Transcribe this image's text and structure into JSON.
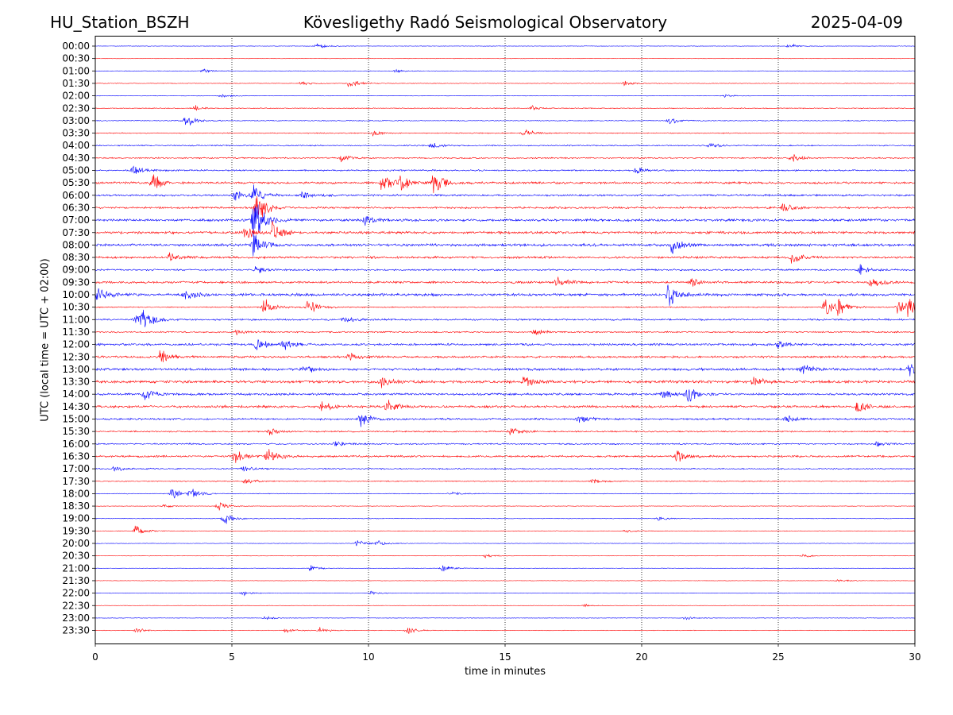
{
  "header": {
    "station": "HU_Station_BSZH",
    "observatory": "Kövesligethy Radó Seismological Observatory",
    "date": "2025-04-09"
  },
  "chart_data": {
    "type": "line",
    "title": "Kövesligethy Radó Seismological Observatory",
    "xlabel": "time in minutes",
    "ylabel": "UTC (local time = UTC + 02:00)",
    "xlim": [
      0,
      30
    ],
    "x_ticks": [
      "0",
      "5",
      "10",
      "15",
      "20",
      "25",
      "30"
    ],
    "grid": "vertical dotted lines at 5-minute intervals",
    "series_colors": [
      "#0000ff",
      "#ff0000"
    ],
    "rows": [
      {
        "label": "00:00",
        "noise": 0.1,
        "events": [
          [
            8.1,
            0.5
          ],
          [
            25.4,
            0.4
          ]
        ]
      },
      {
        "label": "00:30",
        "noise": 0.08,
        "events": []
      },
      {
        "label": "01:00",
        "noise": 0.1,
        "events": [
          [
            3.9,
            0.4
          ],
          [
            11.0,
            0.3
          ]
        ]
      },
      {
        "label": "01:30",
        "noise": 0.12,
        "events": [
          [
            7.5,
            0.4
          ],
          [
            9.3,
            0.8
          ],
          [
            19.4,
            0.5
          ]
        ]
      },
      {
        "label": "02:00",
        "noise": 0.1,
        "events": [
          [
            4.6,
            0.3
          ],
          [
            23.0,
            0.3
          ]
        ]
      },
      {
        "label": "02:30",
        "noise": 0.18,
        "events": [
          [
            3.6,
            0.5
          ],
          [
            16.0,
            0.4
          ]
        ]
      },
      {
        "label": "03:00",
        "noise": 0.18,
        "events": [
          [
            3.3,
            1.3
          ],
          [
            21.0,
            0.6
          ]
        ]
      },
      {
        "label": "03:30",
        "noise": 0.2,
        "events": [
          [
            15.7,
            0.8
          ],
          [
            10.2,
            0.4
          ]
        ]
      },
      {
        "label": "04:00",
        "noise": 0.25,
        "events": [
          [
            12.3,
            0.6
          ],
          [
            22.5,
            0.5
          ]
        ]
      },
      {
        "label": "04:30",
        "noise": 0.28,
        "events": [
          [
            9.0,
            0.6
          ],
          [
            25.5,
            0.7
          ]
        ]
      },
      {
        "label": "05:00",
        "noise": 0.32,
        "events": [
          [
            1.4,
            0.8
          ],
          [
            19.8,
            0.6
          ]
        ]
      },
      {
        "label": "05:30",
        "noise": 0.45,
        "events": [
          [
            2.1,
            1.6
          ],
          [
            10.5,
            1.5
          ],
          [
            12.4,
            1.8
          ],
          [
            11.2,
            1.2
          ]
        ]
      },
      {
        "label": "06:00",
        "noise": 0.4,
        "events": [
          [
            5.1,
            1.0
          ],
          [
            5.8,
            1.5
          ],
          [
            7.6,
            0.8
          ]
        ]
      },
      {
        "label": "06:30",
        "noise": 0.4,
        "events": [
          [
            5.9,
            3.0
          ],
          [
            25.2,
            0.8
          ]
        ]
      },
      {
        "label": "07:00",
        "noise": 0.5,
        "events": [
          [
            5.8,
            4.5
          ],
          [
            9.9,
            0.8
          ]
        ]
      },
      {
        "label": "07:30",
        "noise": 0.5,
        "events": [
          [
            6.5,
            1.6
          ],
          [
            5.5,
            1.2
          ]
        ]
      },
      {
        "label": "08:00",
        "noise": 0.55,
        "events": [
          [
            21.1,
            1.8
          ],
          [
            5.8,
            2.0
          ]
        ]
      },
      {
        "label": "08:30",
        "noise": 0.45,
        "events": [
          [
            2.7,
            0.9
          ],
          [
            25.5,
            0.9
          ]
        ]
      },
      {
        "label": "09:00",
        "noise": 0.35,
        "events": [
          [
            28.0,
            0.8
          ],
          [
            5.9,
            0.6
          ]
        ]
      },
      {
        "label": "09:30",
        "noise": 0.45,
        "events": [
          [
            16.9,
            1.0
          ],
          [
            28.4,
            1.2
          ],
          [
            21.8,
            0.9
          ]
        ]
      },
      {
        "label": "10:00",
        "noise": 0.55,
        "events": [
          [
            0.1,
            1.2
          ],
          [
            3.3,
            1.2
          ],
          [
            21.0,
            1.8
          ]
        ]
      },
      {
        "label": "10:30",
        "noise": 0.25,
        "events": [
          [
            6.2,
            1.6
          ],
          [
            7.8,
            1.3
          ],
          [
            26.7,
            1.6
          ],
          [
            27.2,
            1.5
          ],
          [
            29.4,
            1.6
          ],
          [
            29.8,
            1.7
          ]
        ]
      },
      {
        "label": "11:00",
        "noise": 0.35,
        "events": [
          [
            1.5,
            1.6
          ],
          [
            1.8,
            1.4
          ],
          [
            9.1,
            0.6
          ]
        ]
      },
      {
        "label": "11:30",
        "noise": 0.3,
        "events": [
          [
            16.1,
            0.6
          ],
          [
            5.2,
            0.4
          ]
        ]
      },
      {
        "label": "12:00",
        "noise": 0.45,
        "events": [
          [
            5.9,
            1.0
          ],
          [
            6.9,
            1.0
          ],
          [
            25.0,
            0.5
          ]
        ]
      },
      {
        "label": "12:30",
        "noise": 0.45,
        "events": [
          [
            2.4,
            1.1
          ],
          [
            9.3,
            0.6
          ]
        ]
      },
      {
        "label": "13:00",
        "noise": 0.5,
        "events": [
          [
            7.6,
            0.9
          ],
          [
            29.8,
            1.1
          ],
          [
            25.9,
            0.8
          ]
        ]
      },
      {
        "label": "13:30",
        "noise": 0.55,
        "events": [
          [
            15.7,
            1.1
          ],
          [
            10.5,
            0.9
          ],
          [
            24.1,
            0.9
          ]
        ]
      },
      {
        "label": "14:00",
        "noise": 0.45,
        "events": [
          [
            1.8,
            1.0
          ],
          [
            21.7,
            1.4
          ],
          [
            20.8,
            0.8
          ]
        ]
      },
      {
        "label": "14:30",
        "noise": 0.5,
        "events": [
          [
            10.7,
            1.2
          ],
          [
            27.9,
            1.1
          ],
          [
            8.3,
            0.8
          ]
        ]
      },
      {
        "label": "15:00",
        "noise": 0.4,
        "events": [
          [
            9.7,
            1.2
          ],
          [
            17.7,
            0.8
          ],
          [
            25.3,
            0.7
          ]
        ]
      },
      {
        "label": "15:30",
        "noise": 0.3,
        "events": [
          [
            15.2,
            0.9
          ],
          [
            6.4,
            0.6
          ]
        ]
      },
      {
        "label": "16:00",
        "noise": 0.3,
        "events": [
          [
            8.8,
            0.5
          ],
          [
            28.6,
            0.5
          ]
        ]
      },
      {
        "label": "16:30",
        "noise": 0.4,
        "events": [
          [
            5.1,
            1.0
          ],
          [
            6.3,
            1.6
          ],
          [
            21.3,
            1.0
          ]
        ]
      },
      {
        "label": "17:00",
        "noise": 0.25,
        "events": [
          [
            0.7,
            0.5
          ],
          [
            5.4,
            0.5
          ]
        ]
      },
      {
        "label": "17:30",
        "noise": 0.2,
        "events": [
          [
            5.5,
            0.7
          ],
          [
            18.2,
            0.4
          ]
        ]
      },
      {
        "label": "18:00",
        "noise": 0.15,
        "events": [
          [
            2.8,
            1.0
          ],
          [
            3.5,
            0.9
          ],
          [
            13.0,
            0.4
          ]
        ]
      },
      {
        "label": "18:30",
        "noise": 0.12,
        "events": [
          [
            4.5,
            0.8
          ],
          [
            2.5,
            0.3
          ]
        ]
      },
      {
        "label": "19:00",
        "noise": 0.12,
        "events": [
          [
            4.7,
            1.1
          ],
          [
            20.6,
            0.4
          ]
        ]
      },
      {
        "label": "19:30",
        "noise": 0.12,
        "events": [
          [
            1.5,
            1.0
          ],
          [
            19.4,
            0.3
          ]
        ]
      },
      {
        "label": "20:00",
        "noise": 0.1,
        "events": [
          [
            9.6,
            0.6
          ],
          [
            10.3,
            0.5
          ]
        ]
      },
      {
        "label": "20:30",
        "noise": 0.08,
        "events": [
          [
            14.3,
            0.3
          ],
          [
            25.9,
            0.3
          ]
        ]
      },
      {
        "label": "21:00",
        "noise": 0.1,
        "events": [
          [
            7.9,
            0.5
          ],
          [
            12.7,
            0.6
          ]
        ]
      },
      {
        "label": "21:30",
        "noise": 0.08,
        "events": [
          [
            27.2,
            0.3
          ]
        ]
      },
      {
        "label": "22:00",
        "noise": 0.1,
        "events": [
          [
            5.4,
            0.4
          ],
          [
            10.1,
            0.3
          ]
        ]
      },
      {
        "label": "22:30",
        "noise": 0.08,
        "events": [
          [
            17.9,
            0.3
          ]
        ]
      },
      {
        "label": "23:00",
        "noise": 0.1,
        "events": [
          [
            6.2,
            0.3
          ],
          [
            21.6,
            0.3
          ]
        ]
      },
      {
        "label": "23:30",
        "noise": 0.12,
        "events": [
          [
            1.5,
            0.4
          ],
          [
            7.0,
            0.4
          ],
          [
            11.4,
            0.7
          ],
          [
            8.2,
            0.5
          ]
        ]
      }
    ]
  }
}
